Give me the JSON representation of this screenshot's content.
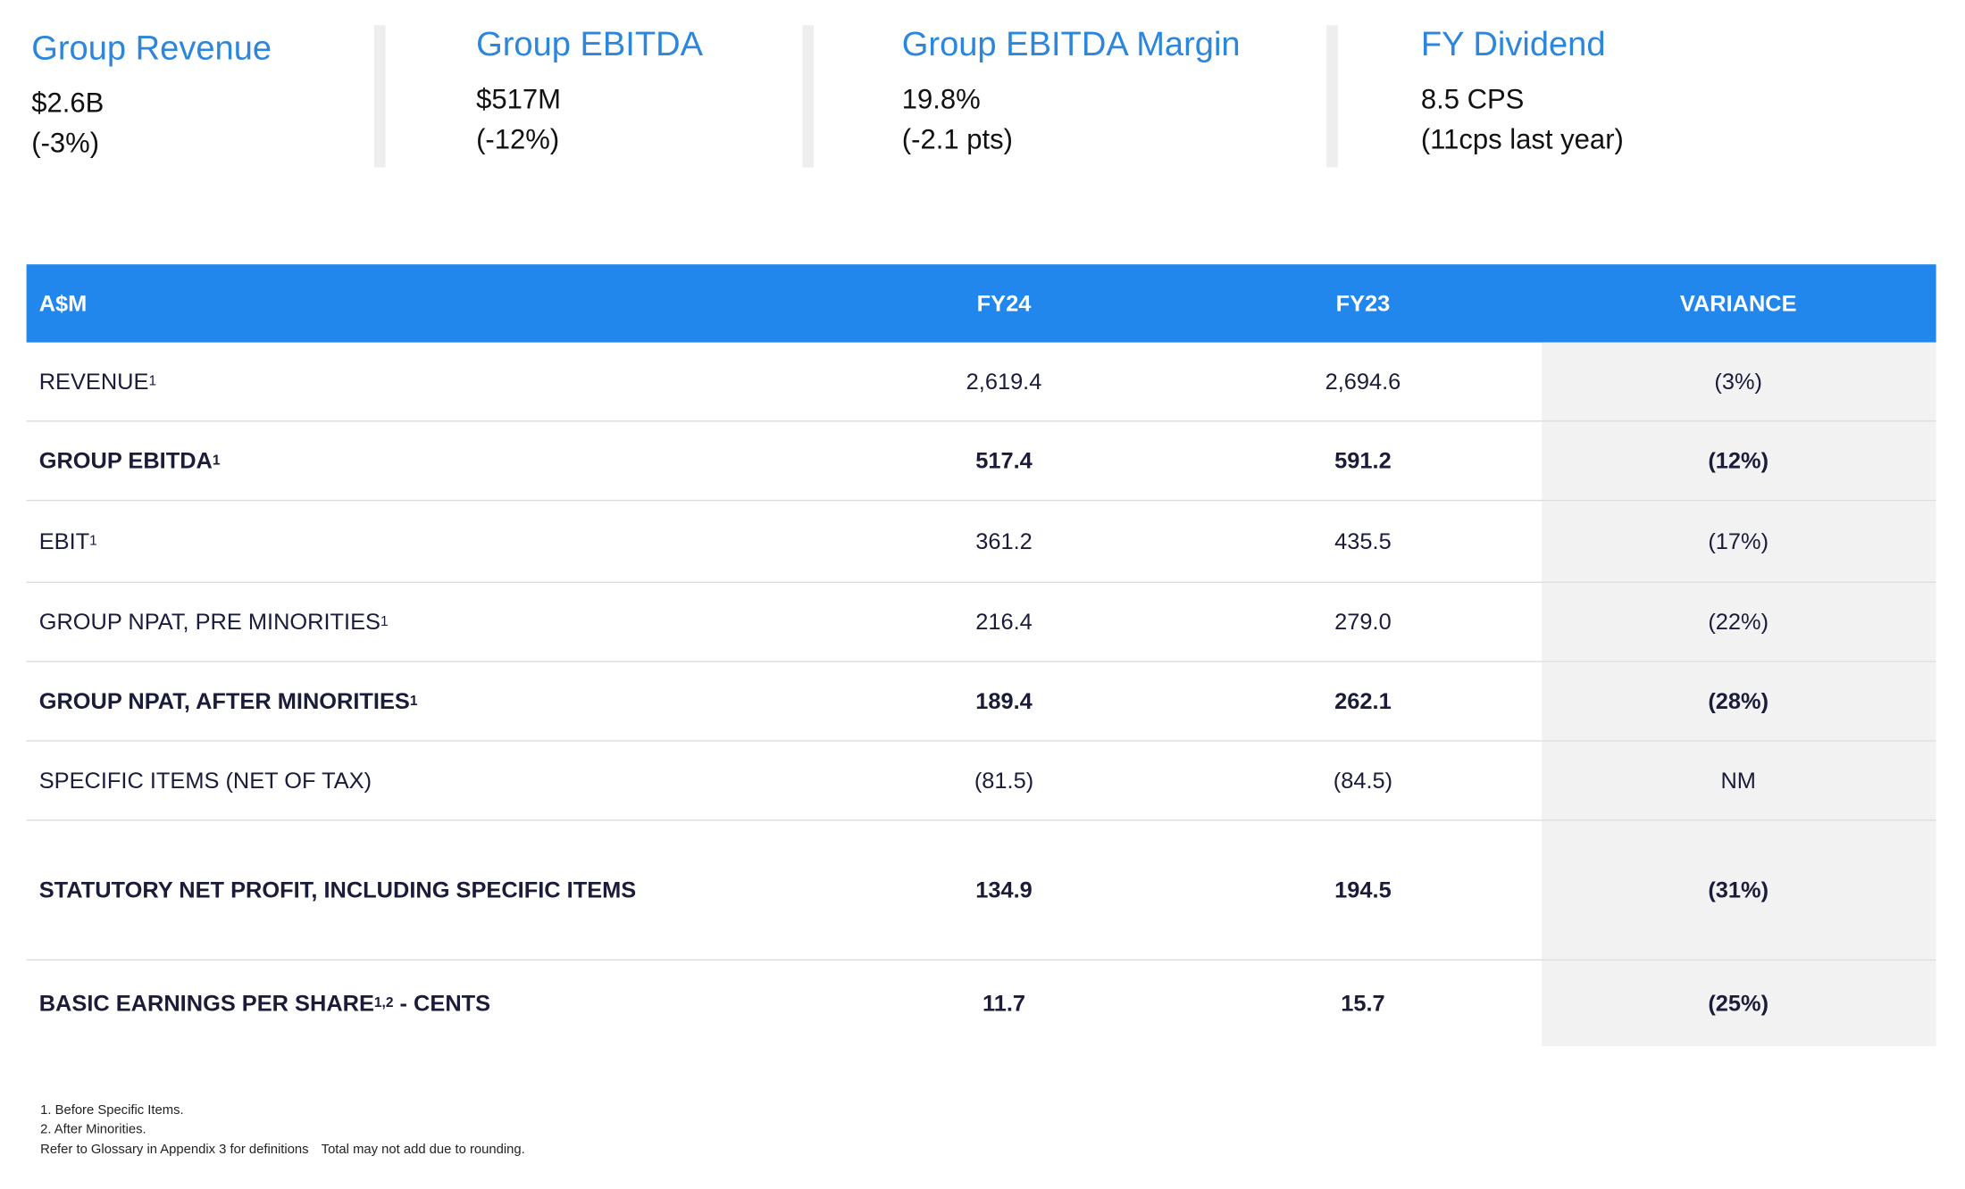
{
  "kpis": [
    {
      "title": "Group Revenue",
      "value": "$2.6B",
      "change": "(-3%)"
    },
    {
      "title": "Group EBITDA",
      "value": "$517M",
      "change": "(-12%)"
    },
    {
      "title": "Group EBITDA Margin",
      "value": "19.8%",
      "change": "(-2.1 pts)"
    },
    {
      "title": "FY Dividend",
      "value": "8.5 CPS",
      "change": "(11cps last year)"
    }
  ],
  "table": {
    "header": [
      "A$M",
      "FY24",
      "FY23",
      "VARIANCE"
    ],
    "rows": [
      {
        "label": "REVENUE",
        "sup": "1",
        "fy24": "2,619.4",
        "fy23": "2,694.6",
        "variance": "(3%)",
        "bold": false
      },
      {
        "label": "GROUP EBITDA",
        "sup": "1",
        "fy24": "517.4",
        "fy23": "591.2",
        "variance": "(12%)",
        "bold": true
      },
      {
        "label": "EBIT",
        "sup": "1",
        "fy24": "361.2",
        "fy23": "435.5",
        "variance": "(17%)",
        "bold": false
      },
      {
        "label": "GROUP NPAT, PRE MINORITIES",
        "sup": "1",
        "fy24": "216.4",
        "fy23": "279.0",
        "variance": "(22%)",
        "bold": false
      },
      {
        "label": "GROUP NPAT, AFTER MINORITIES",
        "sup": "1",
        "fy24": "189.4",
        "fy23": "262.1",
        "variance": "(28%)",
        "bold": true
      },
      {
        "label": "SPECIFIC ITEMS (NET OF TAX)",
        "sup": null,
        "fy24": "(81.5)",
        "fy23": "(84.5)",
        "variance": "NM",
        "bold": false
      },
      {
        "label": "STATUTORY NET PROFIT, INCLUDING SPECIFIC ITEMS",
        "sup": null,
        "fy24": "134.9",
        "fy23": "194.5",
        "variance": "(31%)",
        "bold": true
      },
      {
        "label": "BASIC EARNINGS PER SHARE",
        "sup": "1,2",
        "suffix": " - CENTS",
        "fy24": "11.7",
        "fy23": "15.7",
        "variance": "(25%)",
        "bold": true
      }
    ]
  },
  "footnotes": [
    "1. Before Specific Items.",
    "2. After Minorities.",
    "Refer to Glossary in Appendix 3 for definitions",
    "Total may not add due to rounding."
  ]
}
